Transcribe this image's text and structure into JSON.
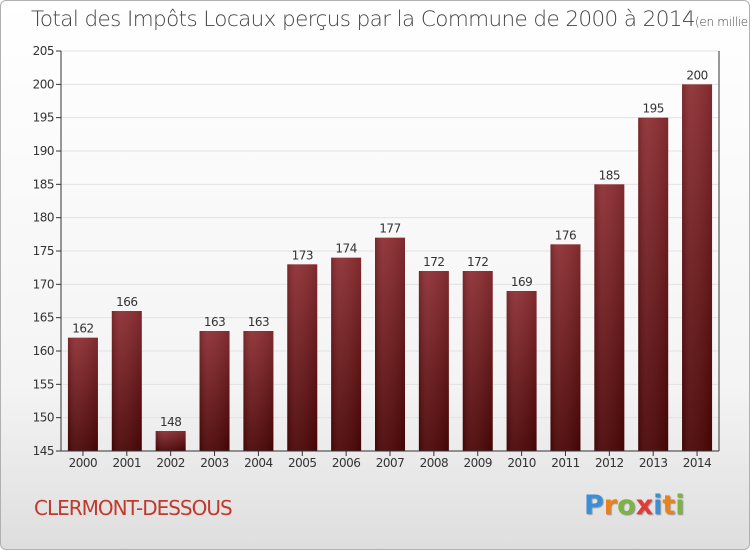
{
  "title": "Total des Impôts Locaux perçus par la Commune de 2000 à 2014",
  "title_unit": "(en milliers d'€)",
  "commune_name": "CLERMONT-DESSOUS",
  "logo": {
    "text": "Proxiti",
    "letters": [
      "P",
      "r",
      "o",
      "x",
      "i",
      "t",
      "i"
    ],
    "colors": [
      "#3a8fd6",
      "#e8821e",
      "#7cb342",
      "#e53935",
      "#3a8fd6",
      "#e8821e",
      "#7cb342"
    ]
  },
  "colors": {
    "bar_top": "#8c2e32",
    "bar_bottom": "#4a0505",
    "axis": "#333333",
    "grid": "#e2e2e2",
    "text": "#333333",
    "commune": "#c0392b"
  },
  "chart_data": {
    "type": "bar",
    "title": "Total des Impôts Locaux perçus par la Commune de 2000 à 2014",
    "xlabel": "",
    "ylabel": "",
    "categories": [
      "2000",
      "2001",
      "2002",
      "2003",
      "2004",
      "2005",
      "2006",
      "2007",
      "2008",
      "2009",
      "2010",
      "2011",
      "2012",
      "2013",
      "2014"
    ],
    "values": [
      162,
      166,
      148,
      163,
      163,
      173,
      174,
      177,
      172,
      172,
      169,
      176,
      185,
      195,
      200
    ],
    "ylim": [
      145,
      205
    ],
    "yticks": [
      145,
      150,
      155,
      160,
      165,
      170,
      175,
      180,
      185,
      190,
      195,
      200,
      205
    ],
    "grid": true
  }
}
